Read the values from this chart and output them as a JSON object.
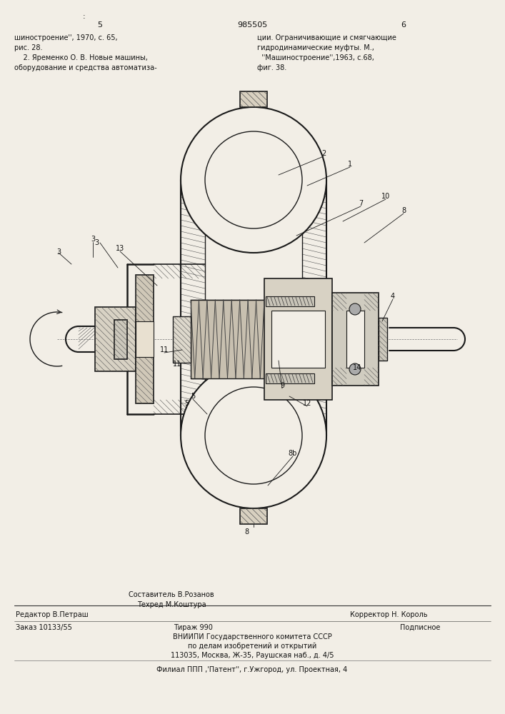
{
  "bg_color": "#f2eee6",
  "page_number_left": "5",
  "page_number_center": "985505",
  "page_number_right": "6",
  "top_dot": ":",
  "top_left_texts": [
    "шиностроение'', 1970, с. 65,",
    "рис. 28.",
    "    2. Яременко О. В. Новые машины,",
    "оборудование и средства автоматиза-"
  ],
  "top_right_texts": [
    "ции. Ограничивающие и смягчающие",
    "гидродинамические муфты. М.,",
    "  ''Машиностроение'',1963, с.68,",
    "фиг. 38."
  ],
  "bottom_editor": "Редактор В.Петраш",
  "bottom_composer_line1": "Составитель В.Розанов",
  "bottom_composer_line2": "Техред М.Коштура",
  "bottom_corrector": "Корректор Н. Король",
  "bottom_order": "Заказ 10133/55",
  "bottom_tirazh": "Тираж 990",
  "bottom_podpisnoe": "Подписное",
  "bottom_vnipi": "ВНИИПИ Государственного комитета СССР",
  "bottom_address1": "по делам изобретений и открытий",
  "bottom_address2": "113035, Москва, Ж-35, Раушская наб., д. 4/5",
  "bottom_filial": "Филиал ППП ,'Патент'', г.Ужгород, ул. Проектная, 4"
}
